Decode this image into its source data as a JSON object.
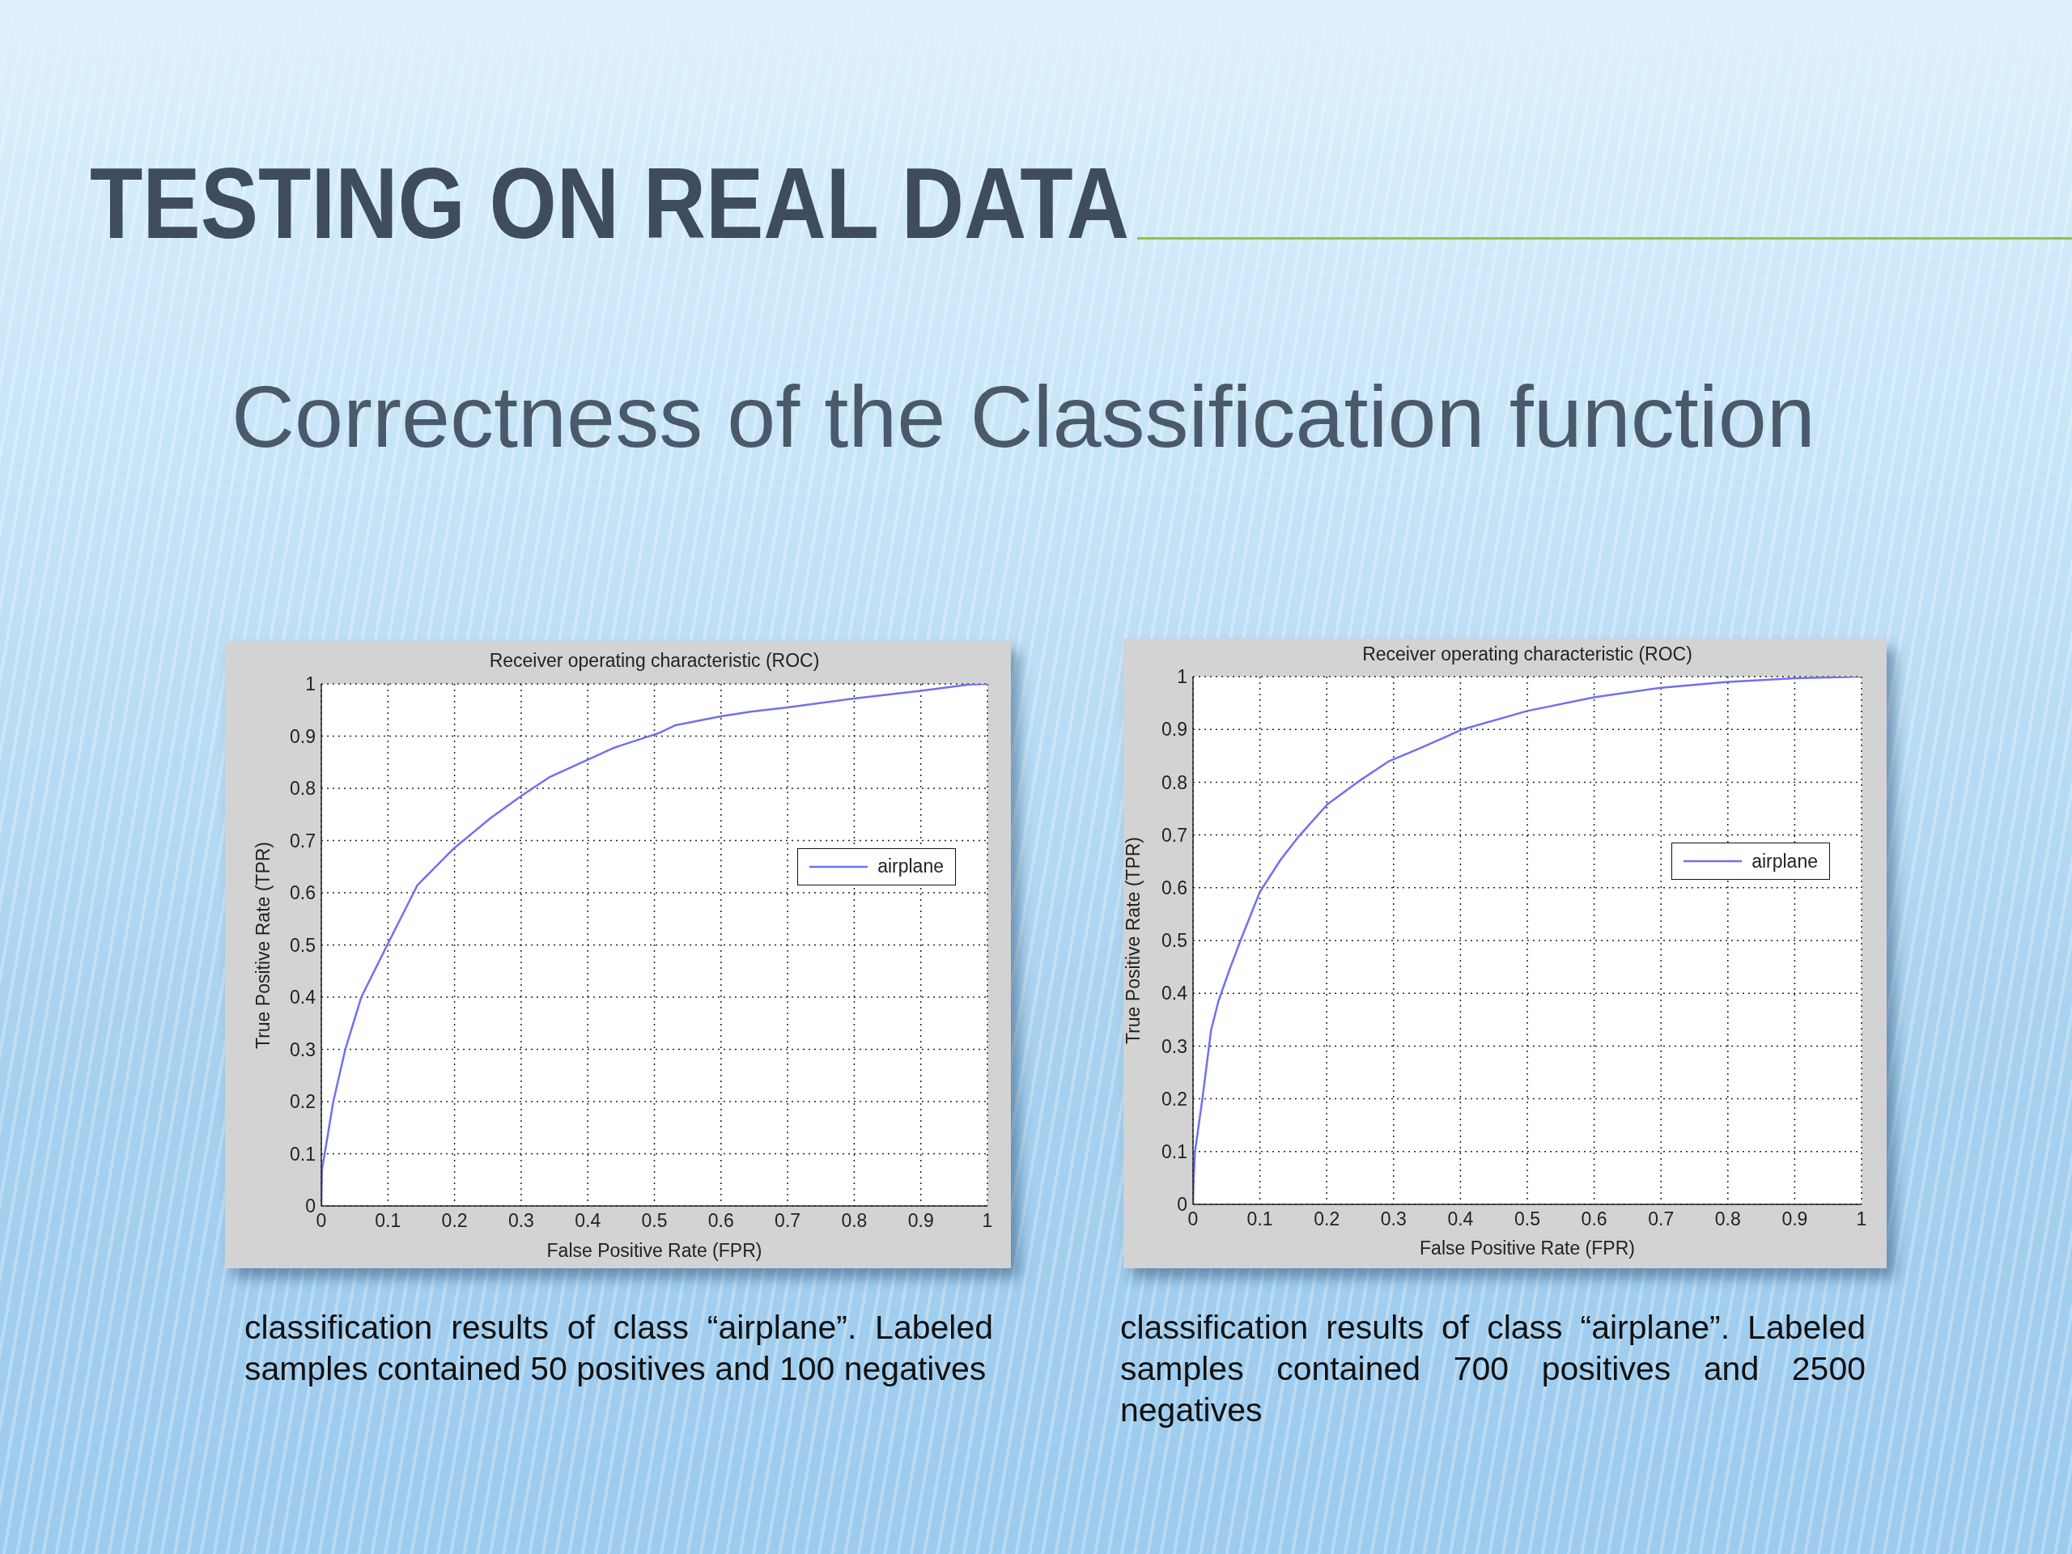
{
  "chart_data": [
    {
      "type": "other",
      "title": "TESTING ON REAL DATA",
      "subtitle": "Correctness of the Classification function"
    },
    {
      "type": "line",
      "title": "Receiver operating characteristic (ROC)",
      "xlabel": "False Positive Rate (FPR)",
      "ylabel": "True Positive Rate (TPR)",
      "series": [
        {
          "name": "airplane",
          "color": "#7070f0",
          "x": [
            0,
            0.001,
            0.005,
            0.018,
            0.036,
            0.06,
            0.097,
            0.144,
            0.199,
            0.254,
            0.303,
            0.342,
            0.402,
            0.44,
            0.507,
            0.532,
            0.6,
            0.645,
            0.7,
            0.8,
            0.9,
            0.949,
            0.972,
            1
          ],
          "values": [
            0,
            0.07,
            0.1,
            0.2,
            0.3,
            0.4,
            0.495,
            0.614,
            0.685,
            0.743,
            0.788,
            0.821,
            0.856,
            0.878,
            0.906,
            0.921,
            0.938,
            0.947,
            0.955,
            0.972,
            0.987,
            0.995,
            0.999,
            1
          ]
        }
      ],
      "xlim": [
        0,
        1
      ],
      "ylim": [
        0,
        1
      ],
      "xticks": [
        0,
        0.1,
        0.2,
        0.3,
        0.4,
        0.5,
        0.6,
        0.7,
        0.8,
        0.9,
        1
      ],
      "yticks": [
        0,
        0.1,
        0.2,
        0.3,
        0.4,
        0.5,
        0.6,
        0.7,
        0.8,
        0.9,
        1
      ],
      "grid": true,
      "legend": "right",
      "annotations": [
        "classification results of class “airplane”. Labeled samples contained 50 positives and 100 negatives"
      ]
    },
    {
      "type": "line",
      "title": "Receiver operating characteristic (ROC)",
      "xlabel": "False Positive Rate (FPR)",
      "ylabel": "True Positive Rate (TPR)",
      "series": [
        {
          "name": "airplane",
          "color": "#7070f0",
          "x": [
            0,
            0.001,
            0.003,
            0.014,
            0.027,
            0.038,
            0.055,
            0.071,
            0.1,
            0.131,
            0.158,
            0.201,
            0.246,
            0.292,
            0.339,
            0.403,
            0.5,
            0.6,
            0.7,
            0.8,
            0.9,
            1
          ],
          "values": [
            0,
            0.05,
            0.1,
            0.2,
            0.33,
            0.385,
            0.446,
            0.5,
            0.592,
            0.653,
            0.697,
            0.758,
            0.8,
            0.839,
            0.864,
            0.9,
            0.935,
            0.961,
            0.979,
            0.99,
            0.997,
            1
          ]
        }
      ],
      "xlim": [
        0,
        1
      ],
      "ylim": [
        0,
        1
      ],
      "xticks": [
        0,
        0.1,
        0.2,
        0.3,
        0.4,
        0.5,
        0.6,
        0.7,
        0.8,
        0.9,
        1
      ],
      "yticks": [
        0,
        0.1,
        0.2,
        0.3,
        0.4,
        0.5,
        0.6,
        0.7,
        0.8,
        0.9,
        1
      ],
      "grid": true,
      "legend": "right",
      "annotations": [
        "classification results of class “airplane”. Labeled samples contained 700 positives and 2500 negatives"
      ]
    }
  ]
}
